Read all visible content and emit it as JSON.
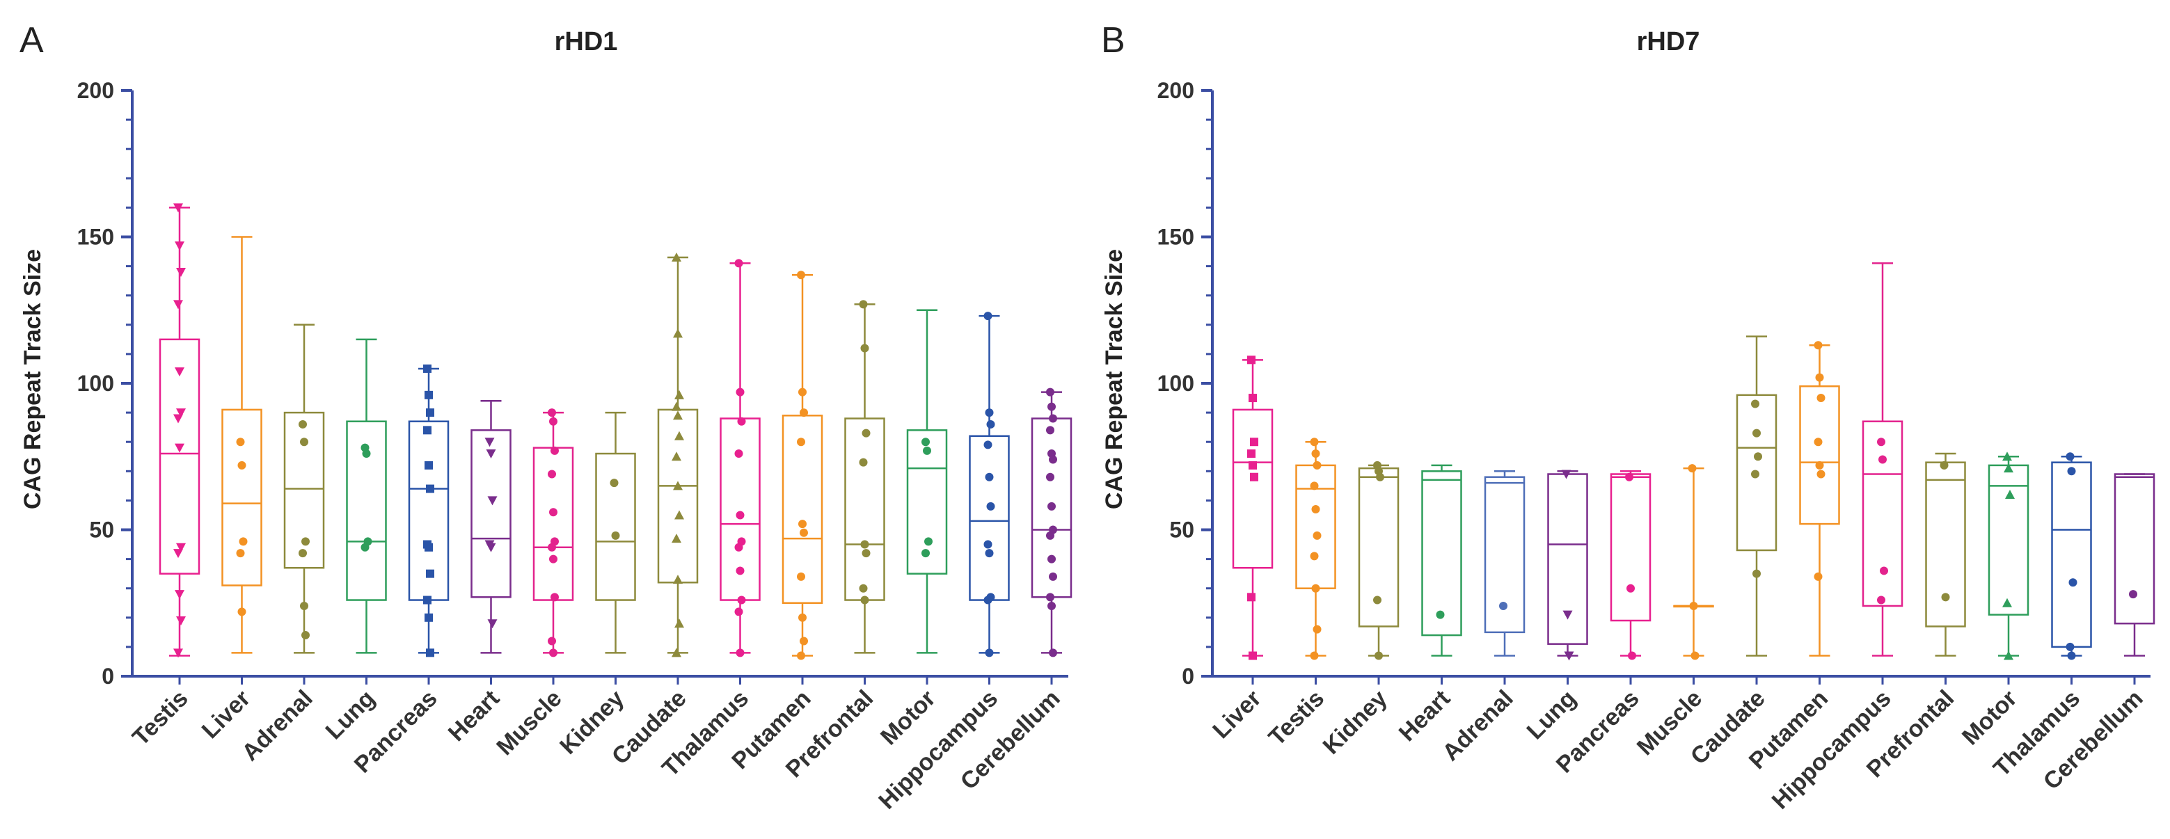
{
  "colors": {
    "axis": "#3b4ea3",
    "magenta": "#e8208f",
    "orange": "#f39223",
    "olive": "#8d8a3c",
    "green": "#2e9e5b",
    "blue": "#2a54a8",
    "purple": "#7a2d8c",
    "pink": "#e3238d",
    "lightblue": "#4f6fb8"
  },
  "chart_data": [
    {
      "type": "box",
      "panel_letter": "A",
      "title": "rHD1",
      "xlabel": "",
      "ylabel": "CAG Repeat Track Size",
      "ylim": [
        0,
        200
      ],
      "yticks": [
        "0",
        "50",
        "100",
        "150",
        "200"
      ],
      "categories": [
        "Testis",
        "Liver",
        "Adrenal",
        "Lung",
        "Pancreas",
        "Heart",
        "Muscle",
        "Kidney",
        "Caudate",
        "Thalamus",
        "Putamen",
        "Prefrontal",
        "Motor",
        "Hippocampus",
        "Cerebellum"
      ],
      "series": [
        {
          "name": "Testis",
          "color": "magenta",
          "marker": "triangle-down",
          "min": 7,
          "q1": 35,
          "median": 76,
          "q3": 115,
          "max": 160,
          "points": [
            160,
            147,
            138,
            127,
            104,
            90,
            88,
            78,
            44,
            42,
            28,
            19,
            8
          ]
        },
        {
          "name": "Liver",
          "color": "orange",
          "marker": "dot",
          "min": 8,
          "q1": 31,
          "median": 59,
          "q3": 91,
          "max": 150,
          "points": [
            80,
            72,
            46,
            42,
            22
          ]
        },
        {
          "name": "Adrenal",
          "color": "olive",
          "marker": "dot",
          "min": 8,
          "q1": 37,
          "median": 64,
          "q3": 90,
          "max": 120,
          "points": [
            86,
            80,
            46,
            42,
            24,
            14
          ]
        },
        {
          "name": "Lung",
          "color": "green",
          "marker": "dot",
          "min": 8,
          "q1": 26,
          "median": 46,
          "q3": 87,
          "max": 115,
          "points": [
            78,
            76,
            46,
            44
          ]
        },
        {
          "name": "Pancreas",
          "color": "blue",
          "marker": "square",
          "min": 8,
          "q1": 26,
          "median": 64,
          "q3": 87,
          "max": 105,
          "points": [
            105,
            96,
            90,
            84,
            72,
            64,
            45,
            44,
            35,
            26,
            20,
            8
          ]
        },
        {
          "name": "Heart",
          "color": "purple",
          "marker": "triangle-down",
          "min": 8,
          "q1": 27,
          "median": 47,
          "q3": 84,
          "max": 94,
          "points": [
            80,
            76,
            60,
            45,
            44,
            18
          ]
        },
        {
          "name": "Muscle",
          "color": "pink",
          "marker": "dot",
          "min": 8,
          "q1": 26,
          "median": 44,
          "q3": 78,
          "max": 90,
          "points": [
            90,
            87,
            77,
            69,
            56,
            46,
            44,
            40,
            27,
            12,
            8
          ]
        },
        {
          "name": "Kidney",
          "color": "olive",
          "marker": "dot",
          "min": 8,
          "q1": 26,
          "median": 46,
          "q3": 76,
          "max": 90,
          "points": [
            66,
            48
          ]
        },
        {
          "name": "Caudate",
          "color": "olive",
          "marker": "triangle-up",
          "min": 8,
          "q1": 32,
          "median": 65,
          "q3": 91,
          "max": 143,
          "points": [
            143,
            117,
            96,
            92,
            89,
            82,
            75,
            65,
            55,
            47,
            33,
            18,
            8
          ]
        },
        {
          "name": "Thalamus",
          "color": "magenta",
          "marker": "dot",
          "min": 8,
          "q1": 26,
          "median": 52,
          "q3": 88,
          "max": 141,
          "points": [
            141,
            97,
            87,
            76,
            55,
            46,
            44,
            36,
            26,
            22,
            8
          ]
        },
        {
          "name": "Putamen",
          "color": "orange",
          "marker": "dot",
          "min": 7,
          "q1": 25,
          "median": 47,
          "q3": 89,
          "max": 137,
          "points": [
            137,
            97,
            90,
            80,
            52,
            49,
            34,
            20,
            12,
            7
          ]
        },
        {
          "name": "Prefrontal",
          "color": "olive",
          "marker": "dot",
          "min": 8,
          "q1": 26,
          "median": 45,
          "q3": 88,
          "max": 127,
          "points": [
            127,
            112,
            83,
            73,
            45,
            42,
            30,
            26
          ]
        },
        {
          "name": "Motor",
          "color": "green",
          "marker": "dot",
          "min": 8,
          "q1": 35,
          "median": 71,
          "q3": 84,
          "max": 125,
          "points": [
            80,
            77,
            46,
            42
          ]
        },
        {
          "name": "Hippocampus",
          "color": "blue",
          "marker": "dot",
          "min": 8,
          "q1": 26,
          "median": 53,
          "q3": 82,
          "max": 123,
          "points": [
            123,
            90,
            86,
            79,
            68,
            58,
            45,
            42,
            27,
            26,
            8
          ]
        },
        {
          "name": "Cerebellum",
          "color": "purple",
          "marker": "dot",
          "min": 8,
          "q1": 27,
          "median": 50,
          "q3": 88,
          "max": 97,
          "points": [
            97,
            92,
            88,
            84,
            76,
            74,
            68,
            58,
            50,
            48,
            40,
            34,
            27,
            24,
            8
          ]
        }
      ]
    },
    {
      "type": "box",
      "panel_letter": "B",
      "title": "rHD7",
      "xlabel": "",
      "ylabel": "CAG Repeat Track Size",
      "ylim": [
        0,
        200
      ],
      "yticks": [
        "0",
        "50",
        "100",
        "150",
        "200"
      ],
      "categories": [
        "Liver",
        "Testis",
        "Kidney",
        "Heart",
        "Adrenal",
        "Lung",
        "Pancreas",
        "Muscle",
        "Caudate",
        "Putamen",
        "Hippocampus",
        "Prefrontal",
        "Motor",
        "Thalamus",
        "Cerebellum"
      ],
      "series": [
        {
          "name": "Liver",
          "color": "magenta",
          "marker": "square",
          "min": 7,
          "q1": 37,
          "median": 73,
          "q3": 91,
          "max": 108,
          "points": [
            108,
            95,
            80,
            76,
            72,
            68,
            27,
            7
          ]
        },
        {
          "name": "Testis",
          "color": "orange",
          "marker": "dot",
          "min": 7,
          "q1": 30,
          "median": 64,
          "q3": 72,
          "max": 80,
          "points": [
            80,
            76,
            72,
            65,
            57,
            48,
            41,
            30,
            16,
            7
          ]
        },
        {
          "name": "Kidney",
          "color": "olive",
          "marker": "dot",
          "min": 7,
          "q1": 17,
          "median": 68,
          "q3": 71,
          "max": 72,
          "points": [
            72,
            70,
            68,
            26,
            7
          ]
        },
        {
          "name": "Heart",
          "color": "green",
          "marker": "dot",
          "min": 7,
          "q1": 14,
          "median": 67,
          "q3": 70,
          "max": 72,
          "points": [
            21
          ]
        },
        {
          "name": "Adrenal",
          "color": "lightblue",
          "marker": "dot",
          "min": 7,
          "q1": 15,
          "median": 66,
          "q3": 68,
          "max": 70,
          "points": [
            24
          ]
        },
        {
          "name": "Lung",
          "color": "purple",
          "marker": "triangle-down",
          "min": 7,
          "q1": 11,
          "median": 45,
          "q3": 69,
          "max": 70,
          "points": [
            69,
            21,
            7
          ]
        },
        {
          "name": "Pancreas",
          "color": "magenta",
          "marker": "dot",
          "min": 7,
          "q1": 19,
          "median": 68,
          "q3": 69,
          "max": 70,
          "points": [
            68,
            30,
            7
          ]
        },
        {
          "name": "Muscle",
          "color": "orange",
          "marker": "dot",
          "min": 7,
          "q1": 24,
          "median": 24,
          "q3": 24,
          "max": 71,
          "points": [
            71,
            24,
            7
          ]
        },
        {
          "name": "Caudate",
          "color": "olive",
          "marker": "dot",
          "min": 7,
          "q1": 43,
          "median": 78,
          "q3": 96,
          "max": 116,
          "points": [
            93,
            83,
            75,
            69,
            35
          ]
        },
        {
          "name": "Putamen",
          "color": "orange",
          "marker": "dot",
          "min": 7,
          "q1": 52,
          "median": 73,
          "q3": 99,
          "max": 113,
          "points": [
            113,
            102,
            95,
            80,
            72,
            69,
            34
          ]
        },
        {
          "name": "Hippocampus",
          "color": "pink",
          "marker": "dot",
          "min": 7,
          "q1": 24,
          "median": 69,
          "q3": 87,
          "max": 141,
          "points": [
            80,
            74,
            36,
            26
          ]
        },
        {
          "name": "Prefrontal",
          "color": "olive",
          "marker": "dot",
          "min": 7,
          "q1": 17,
          "median": 67,
          "q3": 73,
          "max": 76,
          "points": [
            72,
            27
          ]
        },
        {
          "name": "Motor",
          "color": "green",
          "marker": "triangle-up",
          "min": 7,
          "q1": 21,
          "median": 65,
          "q3": 72,
          "max": 75,
          "points": [
            75,
            71,
            62,
            25,
            7
          ]
        },
        {
          "name": "Thalamus",
          "color": "blue",
          "marker": "dot",
          "min": 7,
          "q1": 10,
          "median": 50,
          "q3": 73,
          "max": 75,
          "points": [
            75,
            70,
            32,
            10,
            7
          ]
        },
        {
          "name": "Cerebellum",
          "color": "purple",
          "marker": "dot",
          "min": 7,
          "q1": 18,
          "median": 68,
          "q3": 69,
          "max": 69,
          "points": [
            28
          ]
        }
      ]
    }
  ]
}
